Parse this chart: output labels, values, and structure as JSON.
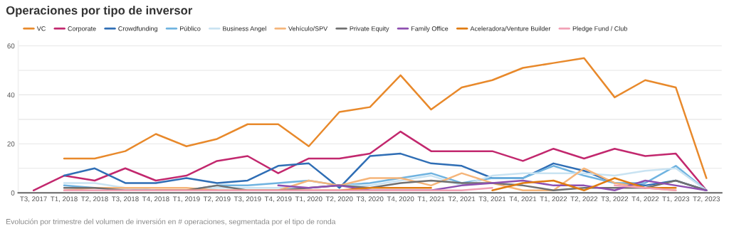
{
  "chart_data": {
    "type": "line",
    "title": "Operaciones por tipo de inversor",
    "categories": [
      "T3, 2017",
      "T1, 2018",
      "T2, 2018",
      "T3, 2018",
      "T4, 2018",
      "T1, 2019",
      "T2, 2019",
      "T3, 2019",
      "T4, 2019",
      "T1, 2020",
      "T2, 2020",
      "T3, 2020",
      "T4, 2020",
      "T1, 2021",
      "T2, 2021",
      "T3, 2021",
      "T4, 2021",
      "T1, 2022",
      "T2, 2022",
      "T3, 2022",
      "T4, 2022",
      "T1, 2023",
      "T2, 2023"
    ],
    "series": [
      {
        "name": "VC",
        "color": "#e8892b",
        "values": [
          null,
          14,
          14,
          17,
          24,
          19,
          22,
          28,
          28,
          19,
          33,
          35,
          48,
          34,
          43,
          46,
          51,
          53,
          55,
          39,
          46,
          43,
          6
        ]
      },
      {
        "name": "Corporate",
        "color": "#c2286e",
        "values": [
          1,
          7,
          5,
          10,
          5,
          7,
          13,
          15,
          8,
          14,
          14,
          16,
          25,
          17,
          17,
          17,
          13,
          18,
          14,
          18,
          15,
          16,
          1
        ]
      },
      {
        "name": "Crowdfunding",
        "color": "#2f6eb5",
        "values": [
          null,
          7,
          10,
          4,
          4,
          6,
          4,
          5,
          11,
          12,
          2,
          15,
          16,
          12,
          11,
          6,
          6,
          12,
          9,
          4,
          3,
          5,
          1
        ]
      },
      {
        "name": "Público",
        "color": "#6fb3e0",
        "values": [
          null,
          3,
          2,
          2,
          1,
          1,
          3,
          3,
          4,
          5,
          3,
          4,
          6,
          8,
          4,
          6,
          6,
          11,
          7,
          4,
          4,
          11,
          1
        ]
      },
      {
        "name": "Business Angel",
        "color": "#c9e3f2",
        "values": [
          null,
          4,
          4,
          2,
          1,
          1,
          2,
          2,
          2,
          2,
          3,
          3,
          5,
          7,
          3,
          7,
          8,
          8,
          8,
          7,
          9,
          10,
          1
        ]
      },
      {
        "name": "Vehículo/SPV",
        "color": "#f5b57a",
        "values": [
          null,
          1,
          2,
          2,
          2,
          2,
          1,
          null,
          1,
          5,
          3,
          6,
          6,
          3,
          8,
          4,
          1,
          1,
          10,
          4,
          2,
          1,
          null
        ]
      },
      {
        "name": "Private Equity",
        "color": "#707070",
        "values": [
          null,
          2,
          2,
          1,
          1,
          1,
          3,
          1,
          1,
          2,
          3,
          2,
          4,
          5,
          4,
          4,
          3,
          1,
          2,
          2,
          2,
          5,
          1
        ]
      },
      {
        "name": "Family Office",
        "color": "#8e4fb0",
        "values": [
          null,
          null,
          null,
          null,
          null,
          null,
          null,
          null,
          3,
          2,
          3,
          1,
          1,
          1,
          3,
          4,
          5,
          3,
          3,
          1,
          5,
          3,
          1
        ]
      },
      {
        "name": "Aceleradora/Venture Builder",
        "color": "#e07b10",
        "values": [
          null,
          null,
          null,
          null,
          1,
          1,
          1,
          1,
          1,
          1,
          1,
          2,
          2,
          2,
          null,
          1,
          4,
          5,
          1,
          6,
          2,
          2,
          null
        ]
      },
      {
        "name": "Pledge Fund / Club",
        "color": "#f2a0b5",
        "values": [
          null,
          1,
          1,
          1,
          1,
          1,
          1,
          1,
          1,
          1,
          1,
          1,
          1,
          1,
          1,
          2,
          null,
          null,
          null,
          3,
          2,
          1,
          null
        ]
      }
    ],
    "ylim": [
      0,
      62
    ],
    "yticks": [
      0,
      {
        "value": 10,
        "label": null
      },
      20,
      {
        "value": 30,
        "label": null
      },
      40,
      {
        "value": 50,
        "label": null
      },
      60
    ],
    "grid": "y",
    "legend": "top",
    "marker": "none",
    "line_style": "solid",
    "annotations": [
      "Evolución por trimestre del volumen de inversión en # operaciones, segmentada por el tipo de ronda"
    ]
  }
}
